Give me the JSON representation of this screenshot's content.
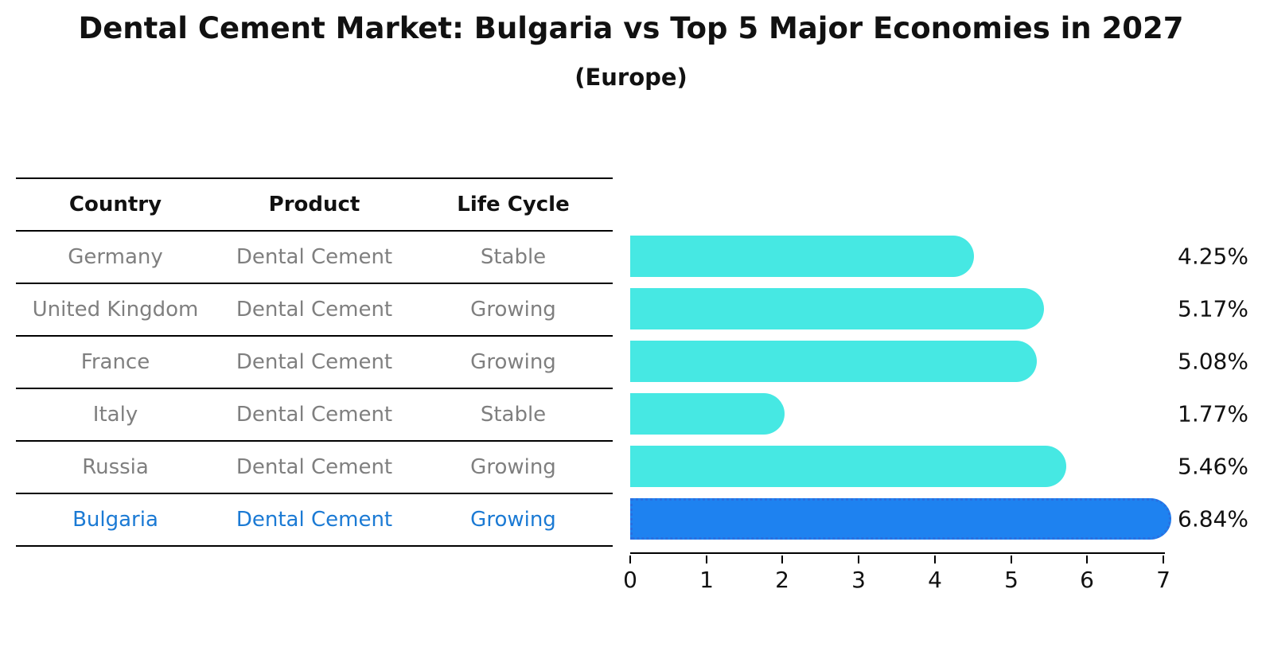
{
  "header": {
    "title": "Dental Cement Market: Bulgaria vs Top 5 Major Economies in 2027",
    "subtitle": "(Europe)"
  },
  "table": {
    "columns": [
      "Country",
      "Product",
      "Life Cycle"
    ],
    "rows": [
      {
        "country": "Germany",
        "product": "Dental Cement",
        "life_cycle": "Stable",
        "highlight": false
      },
      {
        "country": "United Kingdom",
        "product": "Dental Cement",
        "life_cycle": "Growing",
        "highlight": false
      },
      {
        "country": "France",
        "product": "Dental Cement",
        "life_cycle": "Growing",
        "highlight": false
      },
      {
        "country": "Italy",
        "product": "Dental Cement",
        "life_cycle": "Stable",
        "highlight": false
      },
      {
        "country": "Russia",
        "product": "Dental Cement",
        "life_cycle": "Growing",
        "highlight": false
      },
      {
        "country": "Bulgaria",
        "product": "Dental Cement",
        "life_cycle": "Growing",
        "highlight": true
      }
    ]
  },
  "chart_data": {
    "type": "bar",
    "orientation": "horizontal",
    "title": "Dental Cement Market: Bulgaria vs Top 5 Major Economies in 2027",
    "subtitle": "(Europe)",
    "categories": [
      "Germany",
      "United Kingdom",
      "France",
      "Italy",
      "Russia",
      "Bulgaria"
    ],
    "values": [
      4.25,
      5.17,
      5.08,
      1.77,
      5.46,
      6.84
    ],
    "value_labels": [
      "4.25%",
      "5.17%",
      "5.08%",
      "1.77%",
      "5.46%",
      "6.84%"
    ],
    "xlabel": "",
    "ylabel": "",
    "xlim": [
      0,
      7
    ],
    "xticks": [
      0,
      1,
      2,
      3,
      4,
      5,
      6,
      7
    ],
    "grid": false,
    "legend": "none",
    "highlight_index": 5,
    "colors": {
      "bar": "#46e8e3",
      "highlight_bar": "#1e82f0",
      "highlight_border": "#2a6fe0",
      "highlight_text": "#1b7ad4",
      "row_text": "#7f7f7f",
      "axis": "#000000",
      "label_text": "#111111"
    }
  }
}
